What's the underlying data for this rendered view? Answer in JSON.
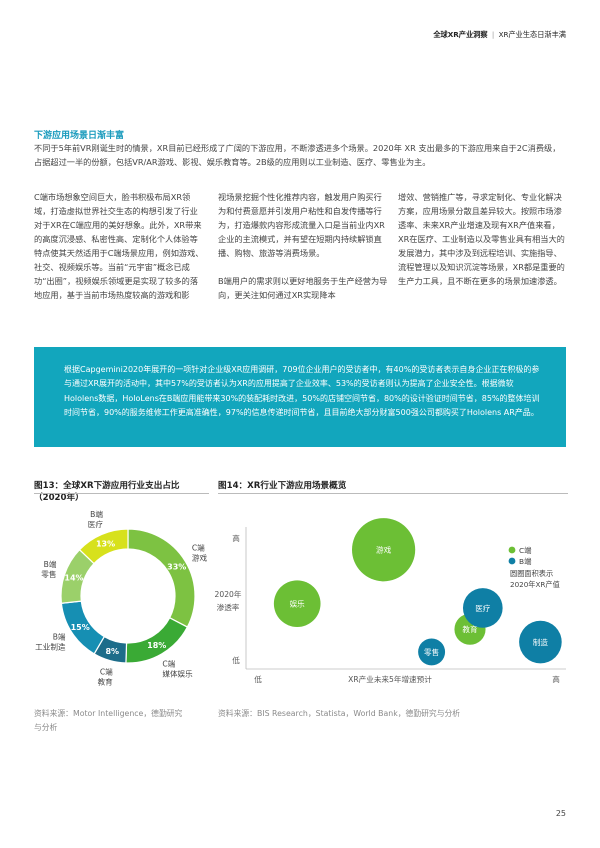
{
  "header": {
    "bold": "全球XR产业洞察",
    "sep": "|",
    "sub": "XR产业生态日渐丰满"
  },
  "section": {
    "title": "下游应用场景日渐丰富",
    "intro": "不同于5年前VR刚诞生时的情景，XR目前已经形成了广阔的下游应用，不断渗透进多个场景。2020年 XR 支出最多的下游应用来自于2C消费级，占据超过一半的份额，包括VR/AR游戏、影视、娱乐教育等。2B级的应用则以工业制造、医疗、零售业为主。"
  },
  "columns": {
    "c1": "C端市场想象空间巨大，脸书积极布局XR领域，打造虚拟世界社交生态的构想引发了行业对于XR在C端应用的美好想象。此外，XR带来的高度沉浸感、私密性高、定制化个人体验等特点使其天然适用于C端场景应用，例如游戏、社交、视频娱乐等。当前“元宇宙”概念已成功“出圈”，视频娱乐领域更是实现了较多的落地应用，基于当前市场热度较高的游戏和影",
    "c2a": "视场景挖掘个性化推荐内容，触发用户购买行为和付费意愿并引发用户粘性和自发传播等行为，打造爆款内容形成流量入口是当前业内XR企业的主流模式，并有望在短期内持续解锁直播、购物、旅游等消费场景。",
    "c2b": "B端用户的需求则以更好地服务于生产经营为导向，更关注如何通过XR实现降本",
    "c3": "增效、营销推广等，寻求定制化、专业化解决方案，应用场景分散且差异较大。按照市场渗透率、未来XR产业增速及现有XR产值来看，XR在医疗、工业制造以及零售业具有相当大的发展潜力，其中涉及到远程培训、实施指导、流程管理以及知识沉淀等场景，XR都是重要的生产力工具，且不断在更多的场景加速渗透。"
  },
  "callout": "根据Capgemini2020年展开的一项针对企业级XR应用调研，709位企业用户的受访者中，有40%的受访者表示自身企业正在积极的参与通过XR展开的活动中，其中57%的受访者认为XR的应用提高了企业效率、53%的受访者则认为提高了企业安全性。根据微软Hololens数据，HoloLens在B端应用能带来30%的装配耗时改进，50%的店铺空间节省，80%的设计验证时间节省，85%的整体培训时间节省，90%的服务维修工作更高准确性，97%的信息传递时间节省，且目前绝大部分财富500强公司都购买了Hololens AR产品。",
  "fig13": {
    "title_line1": "图13：全球XR下游应用行业支出占比",
    "title_line2": "（2020年）",
    "source_line1": "资料来源：Motor Intelligence，德勤研究",
    "source_line2": "与分析"
  },
  "fig14": {
    "title": "图14：XR行业下游应用场景概览",
    "source": "资料来源：BIS Research，Statista，World Bank，德勤研究与分析"
  },
  "page_number": "25",
  "colors": {
    "accent": "#1a9bbd",
    "callout_bg": "#12a6bd",
    "c_end": "#6cbf35",
    "b_end": "#0f7fa5",
    "yellow": "#d7e11c",
    "dark_blue": "#155f80"
  },
  "chart_data": [
    {
      "type": "pie",
      "title": "图13：全球XR下游应用行业支出占比（2020年）",
      "slices": [
        {
          "label_line1": "C端",
          "label_line2": "游戏",
          "value": 33,
          "pct": "33%",
          "color": "#7dc242"
        },
        {
          "label_line1": "C端",
          "label_line2": "媒体娱乐",
          "value": 18,
          "pct": "18%",
          "color": "#3aaa35"
        },
        {
          "label_line1": "C端",
          "label_line2": "教育",
          "value": 8,
          "pct": "8%",
          "color": "#1d6d8a"
        },
        {
          "label_line1": "B端",
          "label_line2": "工业制造",
          "value": 15,
          "pct": "15%",
          "color": "#168fb3"
        },
        {
          "label_line1": "B端",
          "label_line2": "零售",
          "value": 14,
          "pct": "14%",
          "color": "#9bd06a"
        },
        {
          "label_line1": "B端",
          "label_line2": "医疗",
          "value": 13,
          "pct": "13%",
          "color": "#d7e11c"
        }
      ]
    },
    {
      "type": "scatter",
      "title": "图14：XR行业下游应用场景概览",
      "xlabel": "XR产业未来5年增速预计",
      "x_low": "低",
      "x_high": "高",
      "ylabel_line1": "2020年",
      "ylabel_line2": "渗透率",
      "y_low": "低",
      "y_high": "高",
      "xlim": [
        0,
        10
      ],
      "ylim": [
        0,
        10
      ],
      "legend": {
        "c_label": "C端",
        "b_label": "B端",
        "note_line1": "圆圈面积表示",
        "note_line2": "2020年XR产值"
      },
      "points": [
        {
          "label": "游戏",
          "segment": "C",
          "x": 4.3,
          "y": 8.4,
          "size": 33
        },
        {
          "label": "娱乐",
          "segment": "C",
          "x": 1.6,
          "y": 4.6,
          "size": 18
        },
        {
          "label": "教育",
          "segment": "C",
          "x": 7.0,
          "y": 2.8,
          "size": 8
        },
        {
          "label": "医疗",
          "segment": "B",
          "x": 7.4,
          "y": 4.3,
          "size": 13
        },
        {
          "label": "零售",
          "segment": "B",
          "x": 5.8,
          "y": 1.2,
          "size": 6
        },
        {
          "label": "制造",
          "segment": "B",
          "x": 9.2,
          "y": 1.9,
          "size": 15
        }
      ]
    }
  ]
}
